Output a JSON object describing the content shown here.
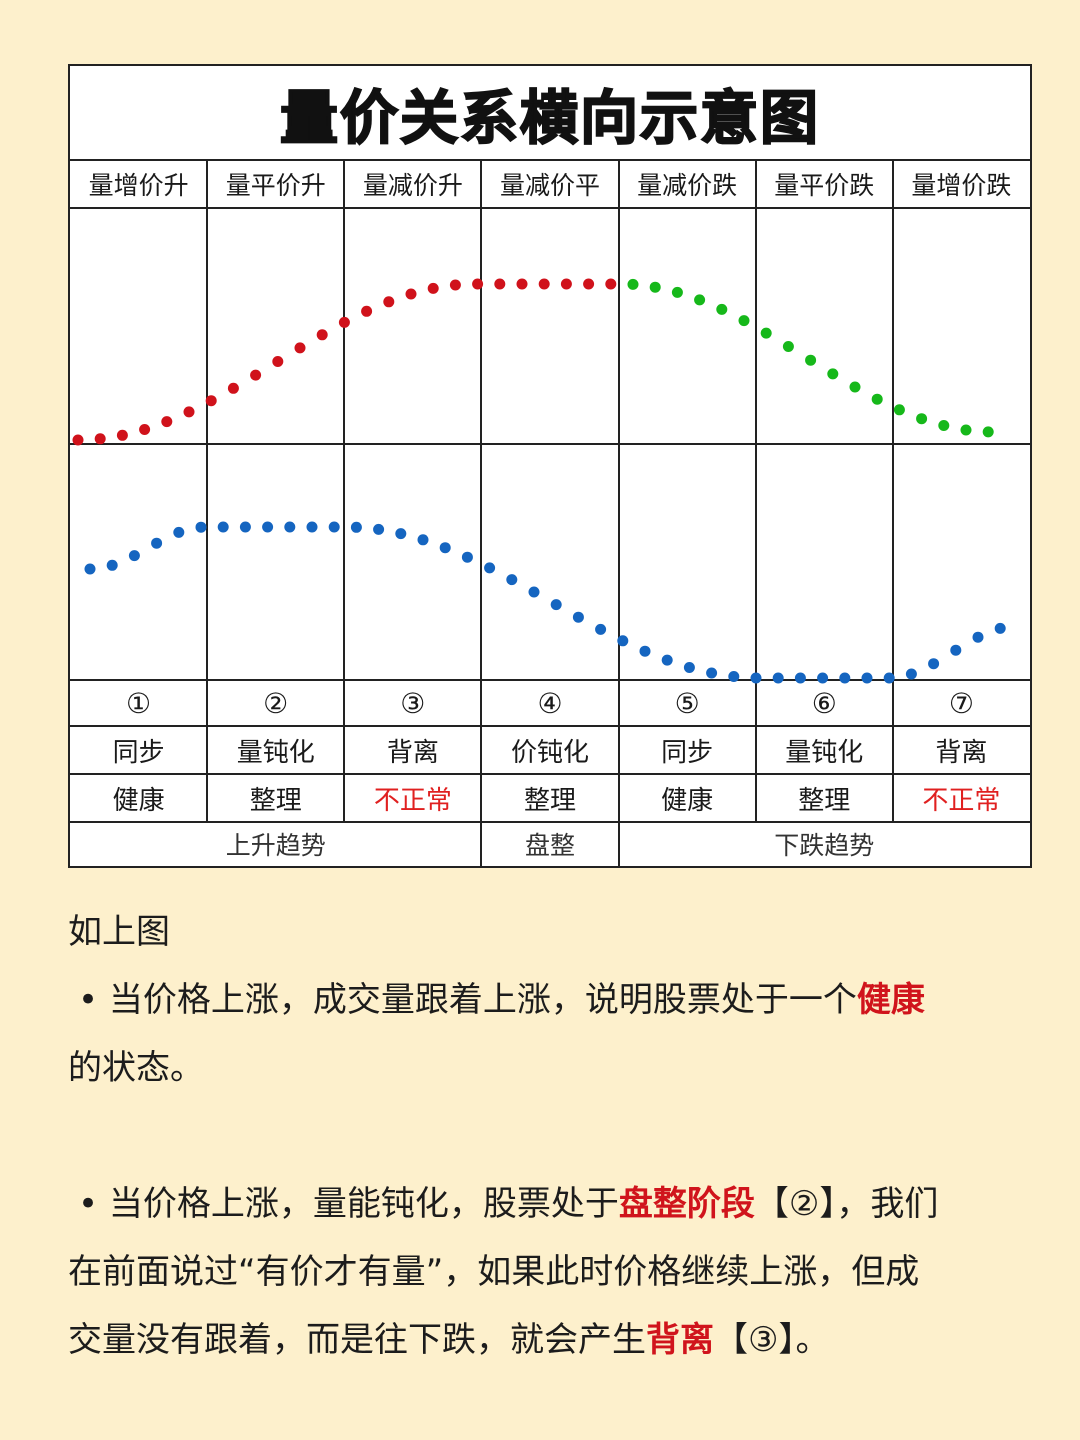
{
  "title": "量价关系横向示意图",
  "columns": [
    {
      "header": "量增价升",
      "num": "①",
      "nature": "同步",
      "status": "健康",
      "abnormal": false
    },
    {
      "header": "量平价升",
      "num": "②",
      "nature": "量钝化",
      "status": "整理",
      "abnormal": false
    },
    {
      "header": "量减价升",
      "num": "③",
      "nature": "背离",
      "status": "不正常",
      "abnormal": true
    },
    {
      "header": "量减价平",
      "num": "④",
      "nature": "价钝化",
      "status": "整理",
      "abnormal": false
    },
    {
      "header": "量减价跌",
      "num": "⑤",
      "nature": "同步",
      "status": "健康",
      "abnormal": false
    },
    {
      "header": "量平价跌",
      "num": "⑥",
      "nature": "量钝化",
      "status": "整理",
      "abnormal": false
    },
    {
      "header": "量增价跌",
      "num": "⑦",
      "nature": "背离",
      "status": "不正常",
      "abnormal": true
    }
  ],
  "phases": [
    {
      "label": "上升趋势",
      "span": [
        0,
        2
      ]
    },
    {
      "label": "盘整",
      "span": [
        3,
        3
      ]
    },
    {
      "label": "下跌趋势",
      "span": [
        4,
        6
      ]
    }
  ],
  "colors": {
    "price_up": "#d0121b",
    "price_down": "#16b81a",
    "volume": "#1565c0",
    "abnormal": "#e02020",
    "highlight": "#d0141c"
  },
  "text": {
    "intro": "如上图",
    "p1_a": "• 当价格上涨，成交量跟着上涨，说明股票处于一个",
    "p1_hl": "健康",
    "p1_b": "的状态。",
    "p2_a": "• 当价格上涨，量能钝化，股票处于",
    "p2_hl": "盘整阶段",
    "p2_b": "【②】，我们",
    "p2_c": "在前面说过“有价才有量”，如果此时价格继续上涨，但成",
    "p2_d": "交量没有跟着，而是往下跌，就会产生",
    "p2_hl2": "背离",
    "p2_e": "【③】。"
  }
}
